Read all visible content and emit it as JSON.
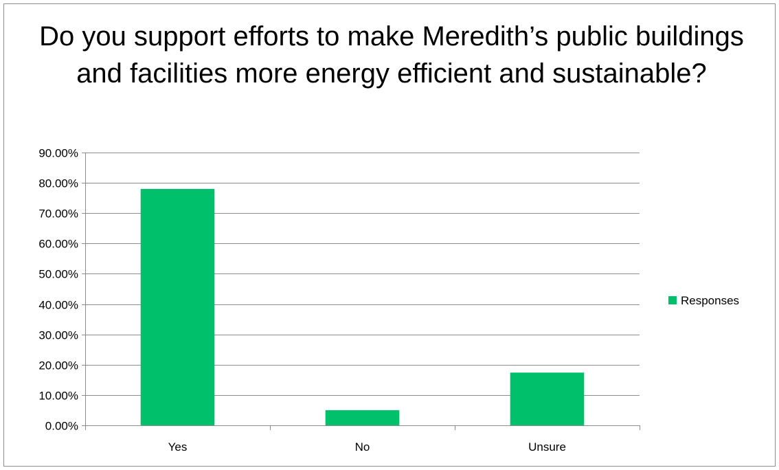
{
  "chart_data": {
    "type": "bar",
    "title": "Do you support efforts to make Meredith’s public buildings and facilities more energy efficient and sustainable?",
    "categories": [
      "Yes",
      "No",
      "Unsure"
    ],
    "series": [
      {
        "name": "Responses",
        "values": [
          0.78,
          0.05,
          0.174
        ],
        "color": "#00c06b"
      }
    ],
    "xlabel": "",
    "ylabel": "",
    "ylim": [
      0,
      0.9
    ],
    "yticks": [
      0,
      0.1,
      0.2,
      0.3,
      0.4,
      0.5,
      0.6,
      0.7,
      0.8,
      0.9
    ],
    "ytick_labels": [
      "0.00%",
      "10.00%",
      "20.00%",
      "30.00%",
      "40.00%",
      "50.00%",
      "60.00%",
      "70.00%",
      "80.00%",
      "90.00%"
    ],
    "grid": true,
    "legend_position": "right",
    "gridline_color": "#8c8c8c",
    "axis_color": "#8c8c8c"
  }
}
